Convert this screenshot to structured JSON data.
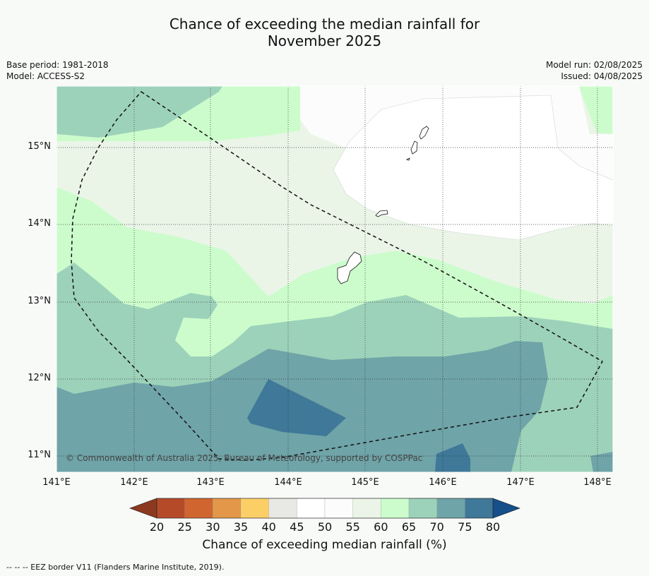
{
  "title_line1": "Chance of exceeding the median rainfall for",
  "title_line2": "November 2025",
  "meta_left": {
    "base_period": "Base period: 1981-2018",
    "model": "Model: ACCESS-S2"
  },
  "meta_right": {
    "model_run": "Model run: 02/08/2025",
    "issued": "Issued: 04/08/2025"
  },
  "copyright": "© Commonwealth of Australia 2025, Bureau of Meteorology, supported by COSPPac",
  "y_ticks": [
    "15°N",
    "14°N",
    "13°N",
    "12°N",
    "11°N"
  ],
  "x_ticks": [
    "141°E",
    "142°E",
    "143°E",
    "144°E",
    "145°E",
    "146°E",
    "147°E",
    "148°E"
  ],
  "colorbar": {
    "label": "Chance of exceeding median rainfall (%)",
    "ticks": [
      "20",
      "25",
      "30",
      "35",
      "40",
      "45",
      "50",
      "55",
      "60",
      "65",
      "70",
      "75",
      "80"
    ],
    "colors": [
      "#8c3a1f",
      "#b54a28",
      "#d06530",
      "#e39748",
      "#fccf66",
      "#e8e8e5",
      "#ffffff",
      "#fbfcfb",
      "#eaf5e8",
      "#ccfccc",
      "#9dd2ba",
      "#6fa4a8",
      "#3f7898",
      "#15508a"
    ]
  },
  "footnote": "--  --  -- EEZ border V11 (Flanders Marine Institute, 2019)."
}
